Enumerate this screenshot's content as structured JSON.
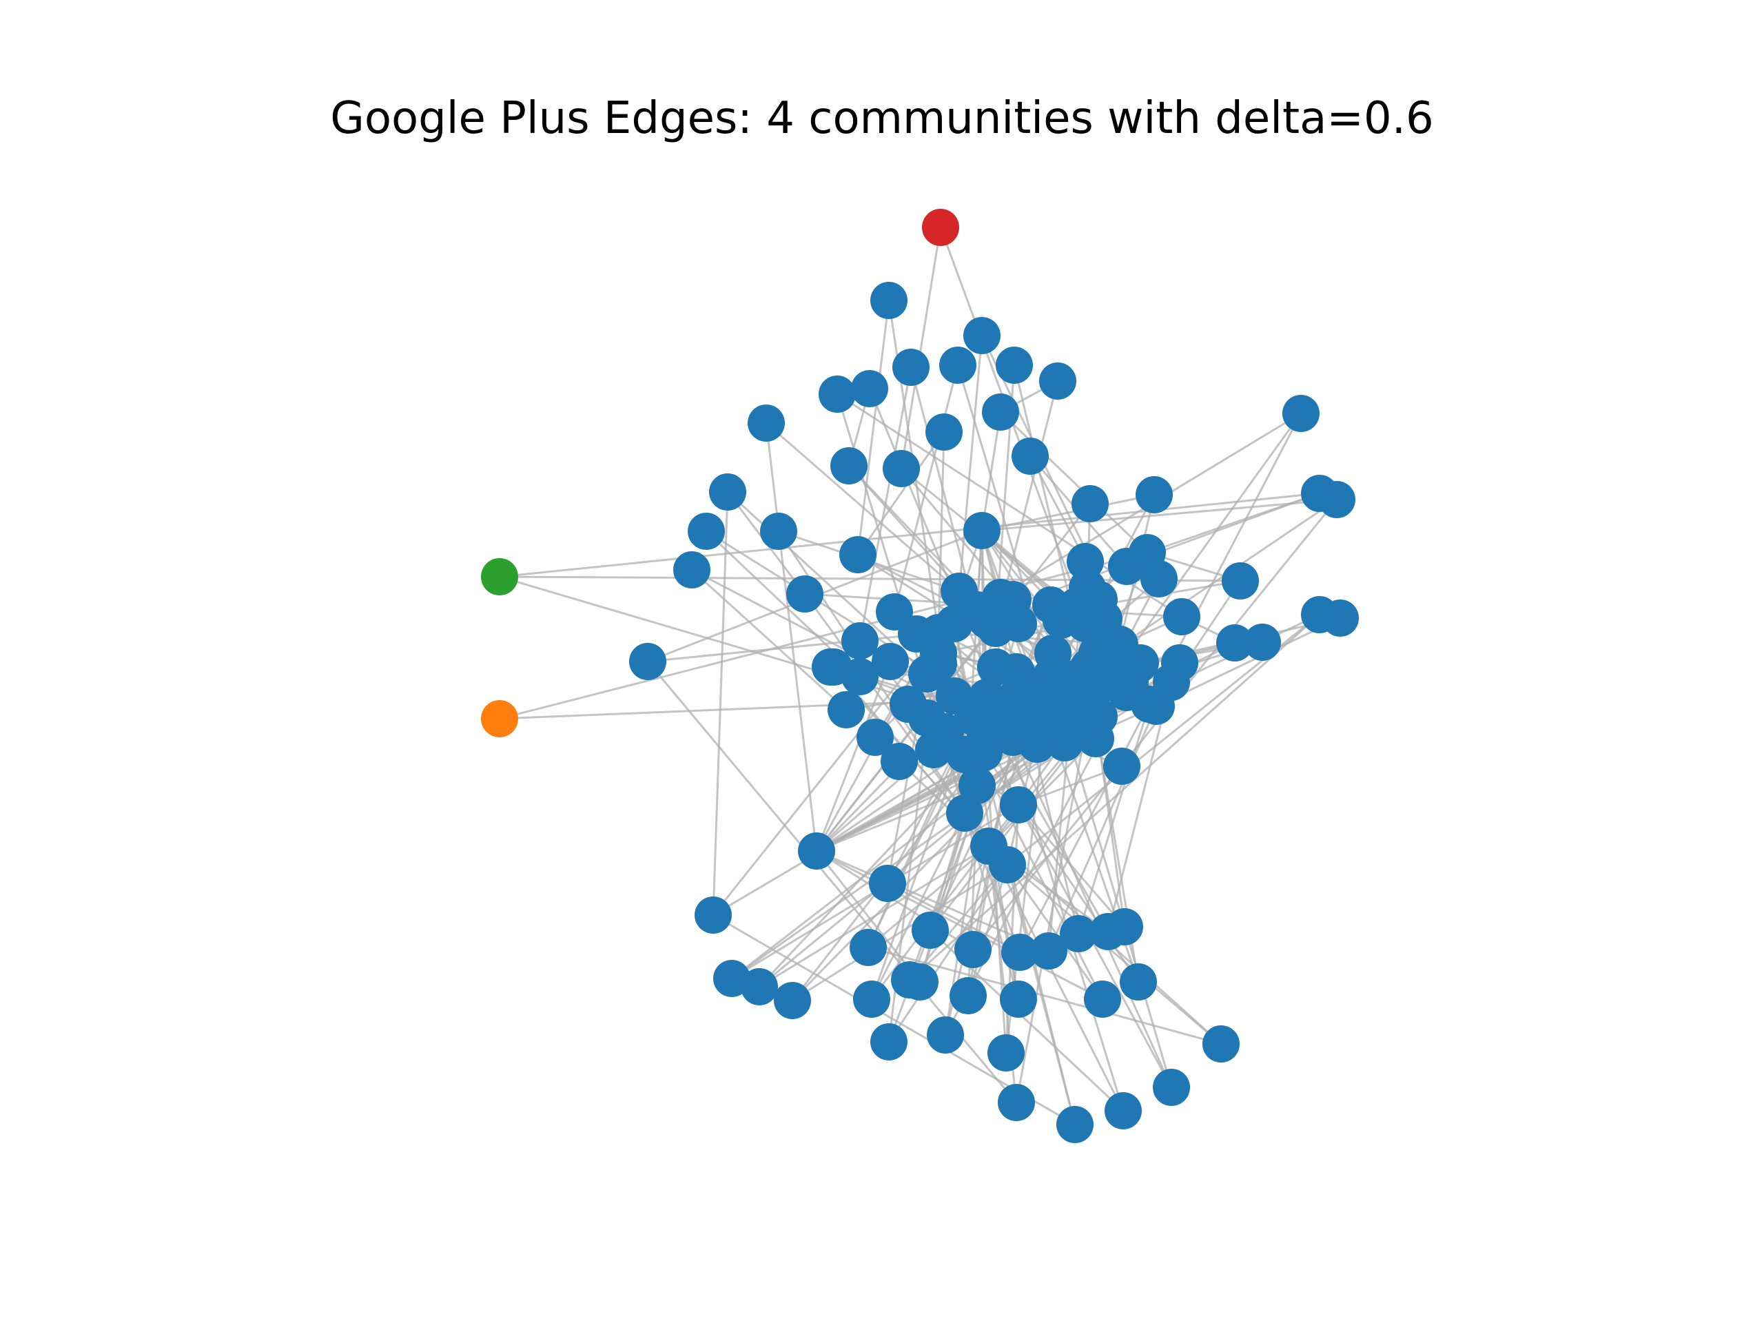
{
  "title": "Google Plus Edges: 4 communities with delta=0.6",
  "colors": {
    "community_0": "#1f77b4",
    "community_1": "#ff7f0e",
    "community_2": "#2ca02c",
    "community_3": "#d62728",
    "edge": "#b0b0b0"
  },
  "graph": {
    "community_count": 4,
    "delta": 0.6
  }
}
